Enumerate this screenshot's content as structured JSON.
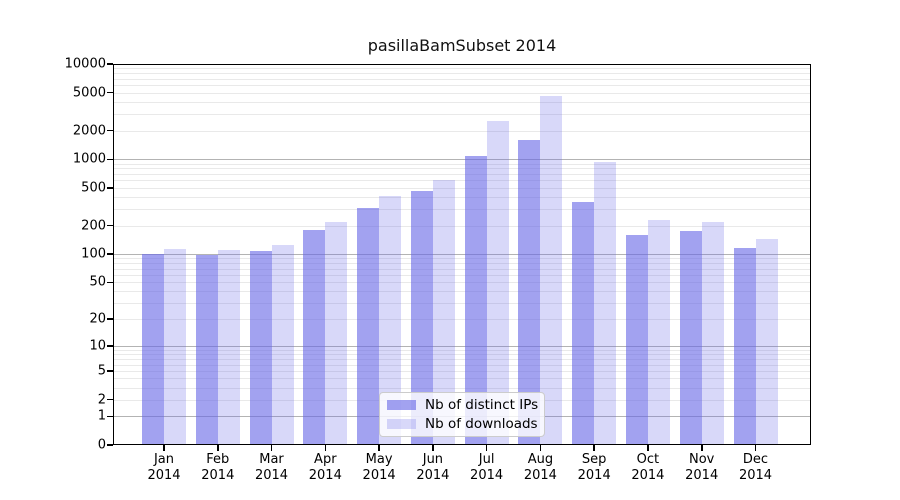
{
  "title": "pasillaBamSubset 2014",
  "colors": {
    "background": "#ffffff",
    "bar_distinct_ips": "rgba(100,100,230,0.60)",
    "bar_downloads": "rgba(100,100,230,0.25)",
    "grid_major": "#b3b3b3",
    "grid_minor": "#e9e9e9",
    "axis_frame": "#000000"
  },
  "chart_data": {
    "type": "bar",
    "title": "pasillaBamSubset 2014",
    "categories": [
      "Jan 2014",
      "Feb 2014",
      "Mar 2014",
      "Apr 2014",
      "May 2014",
      "Jun 2014",
      "Jul 2014",
      "Aug 2014",
      "Sep 2014",
      "Oct 2014",
      "Nov 2014",
      "Dec 2014"
    ],
    "x_months": [
      "Jan",
      "Feb",
      "Mar",
      "Apr",
      "May",
      "Jun",
      "Jul",
      "Aug",
      "Sep",
      "Oct",
      "Nov",
      "Dec"
    ],
    "x_year": "2014",
    "series": [
      {
        "name": "Nb of distinct IPs",
        "color_key": "bar_distinct_ips",
        "values": [
          100,
          98,
          107,
          178,
          305,
          465,
          1080,
          1590,
          355,
          160,
          177,
          115
        ]
      },
      {
        "name": "Nb of downloads",
        "color_key": "bar_downloads",
        "values": [
          112,
          110,
          126,
          218,
          410,
          605,
          2540,
          4610,
          940,
          228,
          218,
          143
        ]
      }
    ],
    "xlabel": "",
    "ylabel": "",
    "y_scale": "log10(1+x)",
    "ylim": [
      0,
      10000
    ],
    "y_ticks": [
      0,
      1,
      2,
      5,
      10,
      20,
      50,
      100,
      200,
      500,
      1000,
      2000,
      5000,
      10000
    ],
    "y_major_gridlines": [
      1,
      10,
      100,
      1000,
      10000
    ],
    "y_minor_gridlines": "2-9 per decade",
    "grid": true,
    "legend_position": "lower center",
    "legend_entries": [
      "Nb of distinct IPs",
      "Nb of downloads"
    ]
  }
}
